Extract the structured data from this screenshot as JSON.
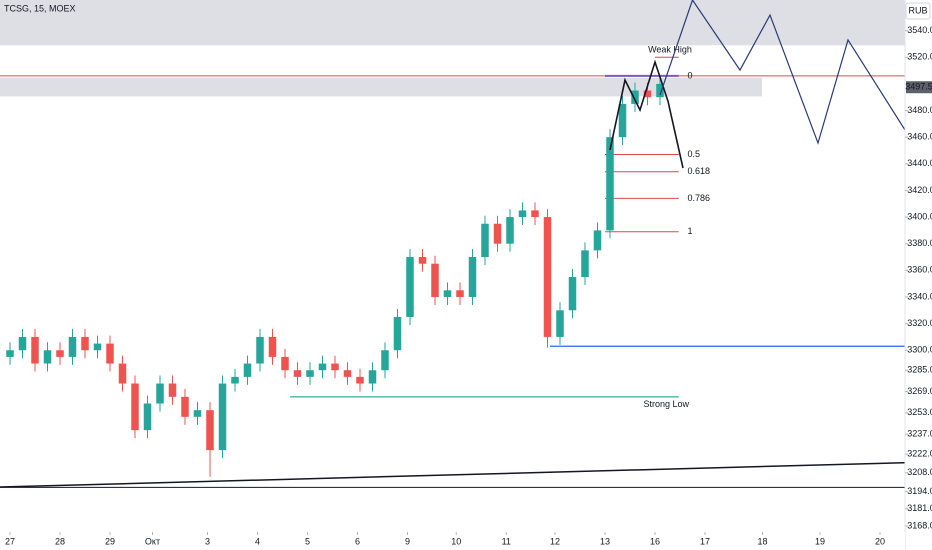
{
  "chart_data": {
    "type": "candlestick",
    "title": "TCSG, 15, MOEX",
    "currency": "RUB",
    "last_price": 3497.5,
    "xlim": [
      -0.8,
      71.6
    ],
    "ylim": [
      3150,
      3563
    ],
    "xticks": [
      {
        "value": 0,
        "label": "27"
      },
      {
        "value": 4,
        "label": "28"
      },
      {
        "value": 8,
        "label": "29"
      },
      {
        "value": 11.4,
        "label": "Окт"
      },
      {
        "value": 15.8,
        "label": "3"
      },
      {
        "value": 19.8,
        "label": "4"
      },
      {
        "value": 23.8,
        "label": "5"
      },
      {
        "value": 27.8,
        "label": "6"
      },
      {
        "value": 31.8,
        "label": "9"
      },
      {
        "value": 35.7,
        "label": "10"
      },
      {
        "value": 39.7,
        "label": "11"
      },
      {
        "value": 43.6,
        "label": "12"
      },
      {
        "value": 47.6,
        "label": "13"
      },
      {
        "value": 51.6,
        "label": "16"
      },
      {
        "value": 55.6,
        "label": "17"
      },
      {
        "value": 60.2,
        "label": "18"
      },
      {
        "value": 64.8,
        "label": "19"
      },
      {
        "value": 69.6,
        "label": "20"
      }
    ],
    "yticks": [
      {
        "value": 3540,
        "label": "3540.0"
      },
      {
        "value": 3520,
        "label": "3520.0"
      },
      {
        "value": 3480,
        "label": "3480.0"
      },
      {
        "value": 3460,
        "label": "3460.0"
      },
      {
        "value": 3440,
        "label": "3440.0"
      },
      {
        "value": 3420,
        "label": "3420.0"
      },
      {
        "value": 3400,
        "label": "3400.0"
      },
      {
        "value": 3380,
        "label": "3380.0"
      },
      {
        "value": 3360,
        "label": "3360.0"
      },
      {
        "value": 3340,
        "label": "3340.0"
      },
      {
        "value": 3320,
        "label": "3320.0"
      },
      {
        "value": 3300,
        "label": "3300.0"
      },
      {
        "value": 3285,
        "label": "3285.0"
      },
      {
        "value": 3269,
        "label": "3269.0"
      },
      {
        "value": 3253,
        "label": "3253.0"
      },
      {
        "value": 3237,
        "label": "3237.0"
      },
      {
        "value": 3222,
        "label": "3222.0"
      },
      {
        "value": 3208,
        "label": "3208.0"
      },
      {
        "value": 3194,
        "label": "3194.0"
      },
      {
        "value": 3181,
        "label": "3181.0"
      },
      {
        "value": 3168,
        "label": "3168.0"
      }
    ],
    "up_color": "#26a69a",
    "down_color": "#ef5350",
    "open": [
      3295,
      3300,
      3310,
      3290,
      3300,
      3295,
      3310,
      3300,
      3305,
      3290,
      3275,
      3240,
      3260,
      3275,
      3265,
      3250,
      3255,
      3225,
      3275,
      3280,
      3290,
      3310,
      3295,
      3285,
      3280,
      3285,
      3290,
      3285,
      3280,
      3275,
      3285,
      3300,
      3325,
      3370,
      3365,
      3340,
      3345,
      3340,
      3370,
      3395,
      3380,
      3400,
      3405,
      3400,
      3310,
      3330,
      3355,
      3375,
      3390,
      3460,
      3485,
      3495,
      3490
    ],
    "high": [
      3306,
      3316,
      3316,
      3306,
      3306,
      3316,
      3316,
      3311,
      3311,
      3296,
      3281,
      3266,
      3281,
      3281,
      3271,
      3261,
      3261,
      3281,
      3286,
      3296,
      3316,
      3316,
      3301,
      3291,
      3291,
      3296,
      3296,
      3291,
      3286,
      3291,
      3306,
      3331,
      3376,
      3376,
      3371,
      3351,
      3351,
      3376,
      3401,
      3401,
      3406,
      3411,
      3411,
      3406,
      3336,
      3361,
      3381,
      3396,
      3466,
      3491,
      3501,
      3501,
      3506
    ],
    "low": [
      3289,
      3294,
      3284,
      3284,
      3289,
      3289,
      3294,
      3294,
      3284,
      3269,
      3234,
      3234,
      3254,
      3259,
      3244,
      3244,
      3205,
      3219,
      3269,
      3274,
      3284,
      3289,
      3279,
      3274,
      3274,
      3279,
      3279,
      3274,
      3269,
      3269,
      3279,
      3294,
      3319,
      3359,
      3334,
      3334,
      3334,
      3334,
      3364,
      3374,
      3374,
      3394,
      3394,
      3302,
      3304,
      3324,
      3349,
      3369,
      3384,
      3454,
      3479,
      3484,
      3484
    ],
    "close": [
      3300,
      3310,
      3290,
      3300,
      3295,
      3310,
      3300,
      3305,
      3290,
      3275,
      3240,
      3260,
      3275,
      3265,
      3250,
      3255,
      3225,
      3275,
      3280,
      3290,
      3310,
      3295,
      3285,
      3280,
      3285,
      3290,
      3285,
      3280,
      3275,
      3285,
      3300,
      3325,
      3370,
      3365,
      3340,
      3345,
      3340,
      3370,
      3395,
      3380,
      3400,
      3405,
      3400,
      3310,
      3330,
      3355,
      3375,
      3390,
      3460,
      3485,
      3495,
      3490,
      3500
    ],
    "zones": [
      [
        3529,
        3563
      ],
      [
        3490.6,
        3504.7
      ]
    ],
    "fib": {
      "levels": [
        0,
        0.5,
        0.618,
        0.786,
        1
      ],
      "prices": [
        3506,
        3447,
        3434,
        3414,
        3389
      ],
      "color": "#e0474c"
    },
    "support_line": {
      "price": 3303,
      "color": "#2962ff"
    },
    "strong_low": {
      "label": "Strong Low",
      "price": 3265,
      "color": "#089981"
    },
    "weak_high": {
      "label": "Weak High",
      "price": 3520,
      "color": "#e0474c"
    },
    "trendline": {
      "x": [
        -0.8,
        73.8
      ],
      "values": [
        3197.3,
        3216.1
      ]
    },
    "base_line": 3197,
    "pattern": {
      "x": [
        48,
        49.2,
        50.4,
        51.6,
        52.64,
        53.84
      ],
      "values": [
        3450.4,
        3502.9,
        3480.4,
        3516.4,
        3487.0,
        3436.8
      ]
    },
    "projection": {
      "x": [
        52,
        54.6,
        58.4,
        60.8,
        64.64,
        67.04,
        71.6
      ],
      "values": [
        3491.7,
        3563,
        3510.4,
        3551.7,
        3455.6,
        3533,
        3465.4
      ],
      "color": "#2a3a78"
    }
  }
}
